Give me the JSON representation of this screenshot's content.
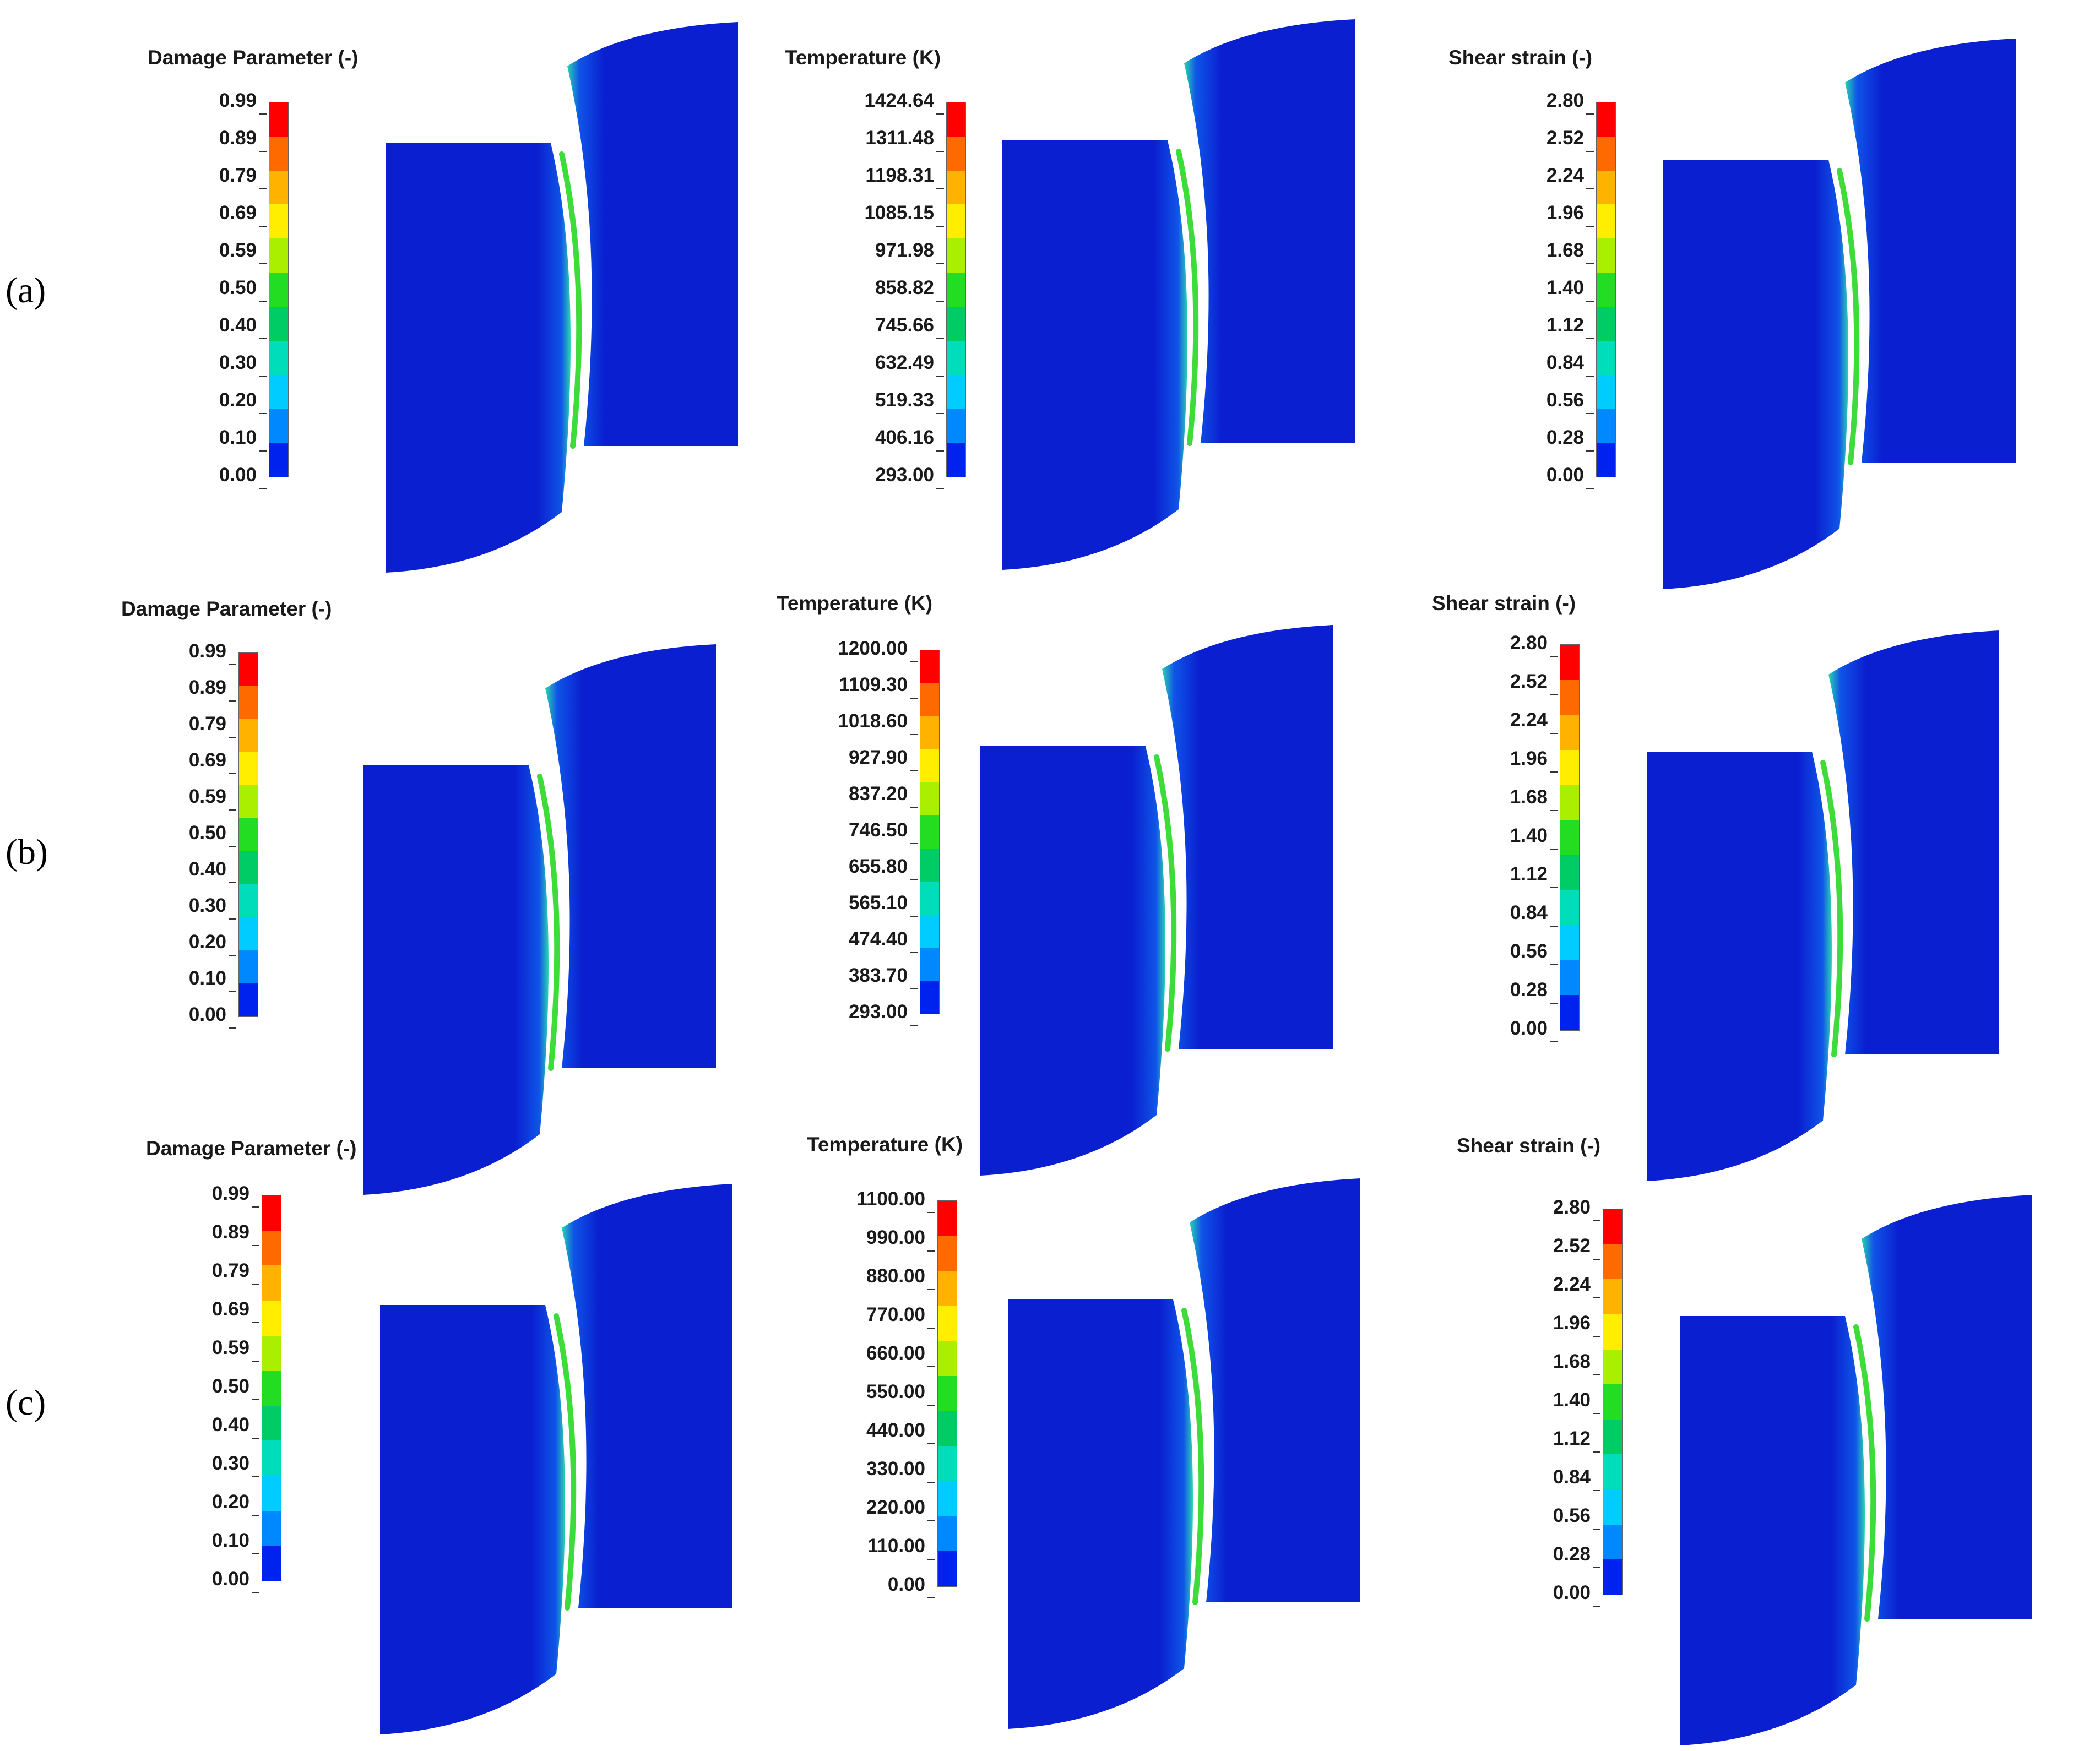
{
  "rows": [
    {
      "label": "(a)",
      "panels": [
        {
          "title": "Damage Parameter (-)",
          "ticks": [
            "0.99",
            "0.89",
            "0.79",
            "0.69",
            "0.59",
            "0.50",
            "0.40",
            "0.30",
            "0.20",
            "0.10",
            "0.00"
          ]
        },
        {
          "title": "Temperature (K)",
          "ticks": [
            "1424.64",
            "1311.48",
            "1198.31",
            "1085.15",
            "971.98",
            "858.82",
            "745.66",
            "632.49",
            "519.33",
            "406.16",
            "293.00"
          ]
        },
        {
          "title": "Shear strain (-)",
          "ticks": [
            "2.80",
            "2.52",
            "2.24",
            "1.96",
            "1.68",
            "1.40",
            "1.12",
            "0.84",
            "0.56",
            "0.28",
            "0.00"
          ]
        }
      ]
    },
    {
      "label": "(b)",
      "panels": [
        {
          "title": "Damage Parameter (-)",
          "ticks": [
            "0.99",
            "0.89",
            "0.79",
            "0.69",
            "0.59",
            "0.50",
            "0.40",
            "0.30",
            "0.20",
            "0.10",
            "0.00"
          ]
        },
        {
          "title": "Temperature (K)",
          "ticks": [
            "1200.00",
            "1109.30",
            "1018.60",
            "927.90",
            "837.20",
            "746.50",
            "655.80",
            "565.10",
            "474.40",
            "383.70",
            "293.00"
          ]
        },
        {
          "title": "Shear strain (-)",
          "ticks": [
            "2.80",
            "2.52",
            "2.24",
            "1.96",
            "1.68",
            "1.40",
            "1.12",
            "0.84",
            "0.56",
            "0.28",
            "0.00"
          ]
        }
      ]
    },
    {
      "label": "(c)",
      "panels": [
        {
          "title": "Damage Parameter (-)",
          "ticks": [
            "0.99",
            "0.89",
            "0.79",
            "0.69",
            "0.59",
            "0.50",
            "0.40",
            "0.30",
            "0.20",
            "0.10",
            "0.00"
          ]
        },
        {
          "title": "Temperature (K)",
          "ticks": [
            "1100.00",
            "990.00",
            "880.00",
            "770.00",
            "660.00",
            "550.00",
            "440.00",
            "330.00",
            "220.00",
            "110.00",
            "0.00"
          ]
        },
        {
          "title": "Shear strain (-)",
          "ticks": [
            "2.80",
            "2.52",
            "2.24",
            "1.96",
            "1.68",
            "1.40",
            "1.12",
            "0.84",
            "0.56",
            "0.28",
            "0.00"
          ]
        }
      ]
    }
  ],
  "colormap": [
    "#ff0000",
    "#ff6a00",
    "#ffb300",
    "#ffee00",
    "#aaee00",
    "#22dd22",
    "#00cc66",
    "#00ddbb",
    "#00ccff",
    "#0088ff",
    "#0022ee"
  ],
  "field_color": "#0a1fd0",
  "edge_color": "#2bd4b0",
  "hot_color": "#3ddc3a"
}
